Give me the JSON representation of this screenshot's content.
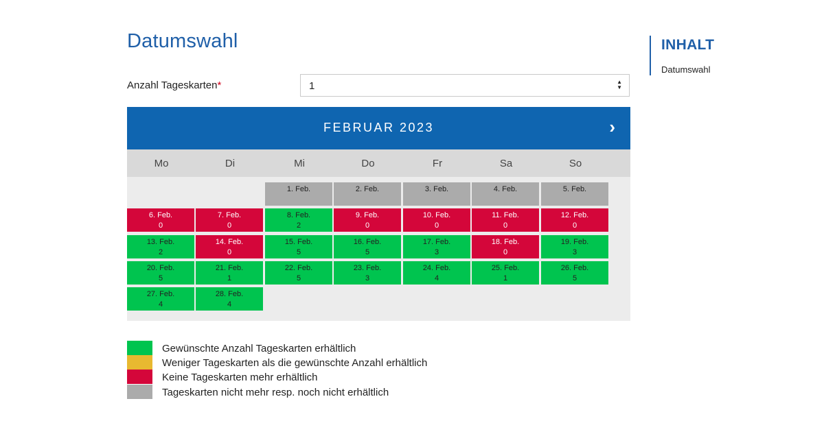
{
  "page": {
    "title": "Datumswahl"
  },
  "form": {
    "label": "Anzahl Tageskarten",
    "required_mark": "*",
    "selected_value": "1"
  },
  "calendar": {
    "month_label": "FEBRUAR 2023",
    "next_symbol": "›",
    "weekdays": [
      "Mo",
      "Di",
      "Mi",
      "Do",
      "Fr",
      "Sa",
      "So"
    ],
    "days": [
      {
        "label": "1. Feb.",
        "count": "",
        "status": "grey",
        "col": 2,
        "row": 0
      },
      {
        "label": "2. Feb.",
        "count": "",
        "status": "grey",
        "col": 3,
        "row": 0
      },
      {
        "label": "3. Feb.",
        "count": "",
        "status": "grey",
        "col": 4,
        "row": 0
      },
      {
        "label": "4. Feb.",
        "count": "",
        "status": "grey",
        "col": 5,
        "row": 0
      },
      {
        "label": "5. Feb.",
        "count": "",
        "status": "grey",
        "col": 6,
        "row": 0
      },
      {
        "label": "6. Feb.",
        "count": "0",
        "status": "red",
        "col": 0,
        "row": 1
      },
      {
        "label": "7. Feb.",
        "count": "0",
        "status": "red",
        "col": 1,
        "row": 1
      },
      {
        "label": "8. Feb.",
        "count": "2",
        "status": "green",
        "col": 2,
        "row": 1
      },
      {
        "label": "9. Feb.",
        "count": "0",
        "status": "red",
        "col": 3,
        "row": 1
      },
      {
        "label": "10. Feb.",
        "count": "0",
        "status": "red",
        "col": 4,
        "row": 1
      },
      {
        "label": "11. Feb.",
        "count": "0",
        "status": "red",
        "col": 5,
        "row": 1
      },
      {
        "label": "12. Feb.",
        "count": "0",
        "status": "red",
        "col": 6,
        "row": 1
      },
      {
        "label": "13. Feb.",
        "count": "2",
        "status": "green",
        "col": 0,
        "row": 2
      },
      {
        "label": "14. Feb.",
        "count": "0",
        "status": "red",
        "col": 1,
        "row": 2
      },
      {
        "label": "15. Feb.",
        "count": "5",
        "status": "green",
        "col": 2,
        "row": 2
      },
      {
        "label": "16. Feb.",
        "count": "5",
        "status": "green",
        "col": 3,
        "row": 2
      },
      {
        "label": "17. Feb.",
        "count": "3",
        "status": "green",
        "col": 4,
        "row": 2
      },
      {
        "label": "18. Feb.",
        "count": "0",
        "status": "red",
        "col": 5,
        "row": 2
      },
      {
        "label": "19. Feb.",
        "count": "3",
        "status": "green",
        "col": 6,
        "row": 2
      },
      {
        "label": "20. Feb.",
        "count": "5",
        "status": "green",
        "col": 0,
        "row": 3
      },
      {
        "label": "21. Feb.",
        "count": "1",
        "status": "green",
        "col": 1,
        "row": 3
      },
      {
        "label": "22. Feb.",
        "count": "5",
        "status": "green",
        "col": 2,
        "row": 3
      },
      {
        "label": "23. Feb.",
        "count": "3",
        "status": "green",
        "col": 3,
        "row": 3
      },
      {
        "label": "24. Feb.",
        "count": "4",
        "status": "green",
        "col": 4,
        "row": 3
      },
      {
        "label": "25. Feb.",
        "count": "1",
        "status": "green",
        "col": 5,
        "row": 3
      },
      {
        "label": "26. Feb.",
        "count": "5",
        "status": "green",
        "col": 6,
        "row": 3
      },
      {
        "label": "27. Feb.",
        "count": "4",
        "status": "green",
        "col": 0,
        "row": 4
      },
      {
        "label": "28. Feb.",
        "count": "4",
        "status": "green",
        "col": 1,
        "row": 4
      }
    ]
  },
  "legend": [
    {
      "color": "#00c44f",
      "text": "Gewünschte Anzahl Tageskarten erhältlich"
    },
    {
      "color": "#e8b930",
      "text": "Weniger Tageskarten als die gewünschte Anzahl erhältlich"
    },
    {
      "color": "#d4063a",
      "text": "Keine Tageskarten mehr erhältlich"
    },
    {
      "color": "#ababab",
      "text": "Tageskarten nicht mehr resp. noch nicht erhältlich"
    }
  ],
  "toc": {
    "title": "INHALT",
    "items": [
      "Datumswahl"
    ]
  },
  "colors": {
    "brand_blue": "#0f65b0",
    "available": "#00c44f",
    "limited": "#e8b930",
    "sold_out": "#d4063a",
    "unavailable": "#ababab"
  }
}
